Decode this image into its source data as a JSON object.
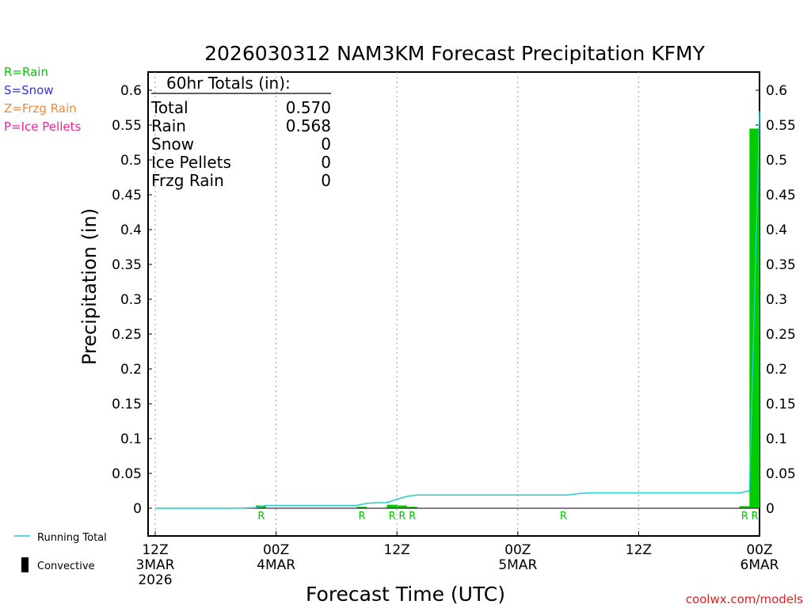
{
  "chart_data": {
    "type": "bar",
    "title": "2026030312 NAM3KM Forecast Precipitation KFMY",
    "xlabel": "Forecast Time (UTC)",
    "ylabel": "Precipitation (in)",
    "ylim": [
      -0.033,
      0.625
    ],
    "xlim_hours": [
      0,
      60
    ],
    "y_ticks": [
      0,
      0.05,
      0.1,
      0.15,
      0.2,
      0.25,
      0.3,
      0.35,
      0.4,
      0.45,
      0.5,
      0.55,
      0.6
    ],
    "y_tick_labels": [
      "0",
      "0.05",
      "0.1",
      "0.15",
      "0.2",
      "0.25",
      "0.3",
      "0.35",
      "0.4",
      "0.45",
      "0.5",
      "0.55",
      "0.6"
    ],
    "x_ticks": [
      {
        "hour": 0,
        "lines": [
          "12Z",
          "3MAR",
          "2026"
        ]
      },
      {
        "hour": 12,
        "lines": [
          "00Z",
          "4MAR"
        ]
      },
      {
        "hour": 24,
        "lines": [
          "12Z"
        ]
      },
      {
        "hour": 36,
        "lines": [
          "00Z",
          "5MAR"
        ]
      },
      {
        "hour": 48,
        "lines": [
          "12Z"
        ]
      },
      {
        "hour": 60,
        "lines": [
          "00Z",
          "6MAR"
        ]
      }
    ],
    "grid": "vertical dotted",
    "legend_placement": "left",
    "precip_type_legend": [
      {
        "label": "R=Rain",
        "color": "#00cc00"
      },
      {
        "label": "S=Snow",
        "color": "#3333dd"
      },
      {
        "label": "Z=Frzg Rain",
        "color": "#ee8833"
      },
      {
        "label": "P=Ice Pellets",
        "color": "#ee2299"
      }
    ],
    "series_legend": [
      {
        "label": "Running Total",
        "color": "#22cccc"
      },
      {
        "label": "Convective",
        "color": "#000000"
      }
    ],
    "totals_box": {
      "header": "60hr Totals (in):",
      "rows": [
        {
          "label": "Total",
          "value": "0.570"
        },
        {
          "label": "Rain",
          "value": "0.568"
        },
        {
          "label": "Snow",
          "value": "0"
        },
        {
          "label": "Ice Pellets",
          "value": "0"
        },
        {
          "label": "Frzg Rain",
          "value": "0"
        }
      ]
    },
    "series": [
      {
        "name": "Rain",
        "color": "#00cc00",
        "x": [
          11,
          21,
          24,
          25,
          26,
          59,
          60
        ],
        "values": [
          0.004,
          0.002,
          0.005,
          0.004,
          0.002,
          0.003,
          0.545
        ]
      },
      {
        "name": "Running Total",
        "color": "#22cccc",
        "x": [
          0,
          8,
          10,
          11,
          20,
          21,
          22,
          23,
          24,
          25,
          26,
          41,
          42,
          43,
          58,
          59,
          60
        ],
        "values": [
          0,
          0,
          0.001,
          0.004,
          0.004,
          0.007,
          0.008,
          0.008,
          0.013,
          0.017,
          0.019,
          0.019,
          0.021,
          0.022,
          0.022,
          0.025,
          0.57
        ]
      }
    ],
    "type_markers": [
      {
        "hour": 11,
        "label": "R"
      },
      {
        "hour": 21,
        "label": "R"
      },
      {
        "hour": 24,
        "label": "R"
      },
      {
        "hour": 25,
        "label": "R"
      },
      {
        "hour": 26,
        "label": "R"
      },
      {
        "hour": 41,
        "label": "R"
      },
      {
        "hour": 59,
        "label": "R"
      },
      {
        "hour": 60,
        "label": "R"
      }
    ],
    "credit": "coolwx.com/models"
  }
}
